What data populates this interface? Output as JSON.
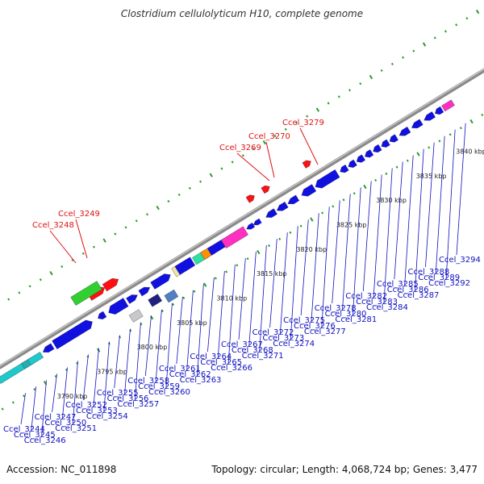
{
  "title": "Clostridium cellulolyticum H10, complete genome",
  "footer": {
    "accession": "Accession: NC_011898",
    "summary": "Topology: circular; Length: 4,068,724 bp; Genes: 3,477"
  },
  "colors": {
    "backbone": "#8a8a8a",
    "track_ticks": "#2f9a2f",
    "gene_default": "#1010e0",
    "highlight_label": "#e01010",
    "gene_label": "#1010c0"
  },
  "scale_labels": [
    "3790 kbp",
    "3795 kbp",
    "3800 kbp",
    "3805 kbp",
    "3810 kbp",
    "3815 kbp",
    "3820 kbp",
    "3825 kbp",
    "3830 kbp",
    "3835 kbp",
    "3840 kbp"
  ],
  "highlight_labels": [
    "Ccel_3248",
    "Ccel_3249",
    "Ccel_3269",
    "Ccel_3270",
    "Ccel_3279"
  ],
  "gene_labels": [
    "Ccel_3244",
    "Ccel_3245",
    "Ccel_3246",
    "Ccel_3247",
    "Ccel_3250",
    "Ccel_3251",
    "Ccel_3252",
    "Ccel_3253",
    "Ccel_3254",
    "Ccel_3255",
    "Ccel_3256",
    "Ccel_3257",
    "Ccel_3258",
    "Ccel_3259",
    "Ccel_3260",
    "Ccel_3261",
    "Ccel_3262",
    "Ccel_3263",
    "Ccel_3264",
    "Ccel_3265",
    "Ccel_3266",
    "Ccel_3267",
    "Ccel_3268",
    "Ccel_3271",
    "Ccel_3272",
    "Ccel_3273",
    "Ccel_3274",
    "Ccel_3275",
    "Ccel_3276",
    "Ccel_3277",
    "Ccel_3278",
    "Ccel_3280",
    "Ccel_3281",
    "Ccel_3282",
    "Ccel_3283",
    "Ccel_3284",
    "Ccel_3285",
    "Ccel_3286",
    "Ccel_3287",
    "Ccel_3288",
    "Ccel_3289",
    "Ccel_3292",
    "Ccel_3294"
  ]
}
